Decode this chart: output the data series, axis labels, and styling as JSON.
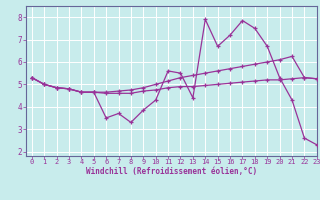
{
  "xlabel": "Windchill (Refroidissement éolien,°C)",
  "xlim": [
    -0.5,
    23
  ],
  "ylim": [
    1.8,
    8.5
  ],
  "yticks": [
    2,
    3,
    4,
    5,
    6,
    7,
    8
  ],
  "xticks": [
    0,
    1,
    2,
    3,
    4,
    5,
    6,
    7,
    8,
    9,
    10,
    11,
    12,
    13,
    14,
    15,
    16,
    17,
    18,
    19,
    20,
    21,
    22,
    23
  ],
  "bg_color": "#c8ecec",
  "grid_color": "#aad4d4",
  "line_color": "#993399",
  "border_color": "#666699",
  "line1_y": [
    5.3,
    5.0,
    4.85,
    4.8,
    4.65,
    4.65,
    3.5,
    3.7,
    3.3,
    3.85,
    4.3,
    5.6,
    5.5,
    4.4,
    7.9,
    6.7,
    7.2,
    7.85,
    7.5,
    6.7,
    5.3,
    4.3,
    2.6,
    2.3
  ],
  "line2_y": [
    5.3,
    5.0,
    4.85,
    4.8,
    4.65,
    4.65,
    4.65,
    4.7,
    4.75,
    4.85,
    5.0,
    5.15,
    5.3,
    5.4,
    5.5,
    5.6,
    5.7,
    5.8,
    5.9,
    6.0,
    6.1,
    6.25,
    5.3,
    5.25
  ],
  "line3_y": [
    5.3,
    5.0,
    4.85,
    4.8,
    4.65,
    4.65,
    4.6,
    4.6,
    4.6,
    4.7,
    4.75,
    4.85,
    4.9,
    4.9,
    4.95,
    5.0,
    5.05,
    5.1,
    5.15,
    5.2,
    5.2,
    5.25,
    5.3,
    5.25
  ]
}
